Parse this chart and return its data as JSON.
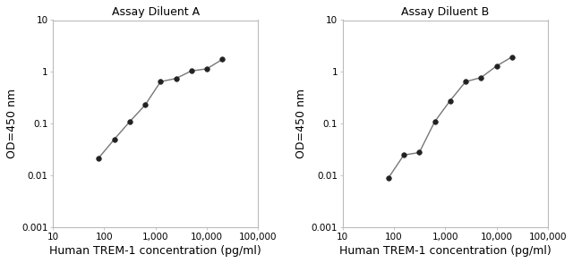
{
  "panel_A": {
    "title": "Assay Diluent A",
    "x": [
      78,
      156,
      313,
      625,
      1250,
      2500,
      5000,
      10000,
      20000
    ],
    "y": [
      0.022,
      0.05,
      0.11,
      0.23,
      0.65,
      0.75,
      1.05,
      1.15,
      1.75
    ],
    "xlabel": "Human TREM-1 concentration (pg/ml)",
    "ylabel": "OD=450 nm",
    "xlim": [
      10,
      100000
    ],
    "ylim": [
      0.001,
      10
    ],
    "xticks": [
      10,
      100,
      1000,
      10000,
      100000
    ],
    "xticklabels": [
      "10",
      "100",
      "1,000",
      "10,000",
      "100,000"
    ],
    "yticks": [
      0.001,
      0.01,
      0.1,
      1,
      10
    ],
    "yticklabels": [
      "0.001",
      "0.01",
      "0.1",
      "1",
      "10"
    ]
  },
  "panel_B": {
    "title": "Assay Diluent B",
    "x": [
      78,
      156,
      313,
      625,
      1250,
      2500,
      5000,
      10000,
      20000
    ],
    "y": [
      0.009,
      0.025,
      0.028,
      0.11,
      0.28,
      0.65,
      0.78,
      1.3,
      1.95
    ],
    "xlabel": "Human TREM-1 concentration (pg/ml)",
    "ylabel": "OD=450 nm",
    "xlim": [
      10,
      100000
    ],
    "ylim": [
      0.001,
      10
    ],
    "xticks": [
      10,
      100,
      1000,
      10000,
      100000
    ],
    "xticklabels": [
      "10",
      "100",
      "1,000",
      "10,000",
      "100,000"
    ],
    "yticks": [
      0.001,
      0.01,
      0.1,
      1,
      10
    ],
    "yticklabels": [
      "0.001",
      "0.01",
      "0.1",
      "1",
      "10"
    ]
  },
  "line_color": "#777777",
  "marker_color": "#222222",
  "bg_color": "#ffffff",
  "title_fontsize": 9,
  "label_fontsize": 9,
  "tick_fontsize": 7.5
}
